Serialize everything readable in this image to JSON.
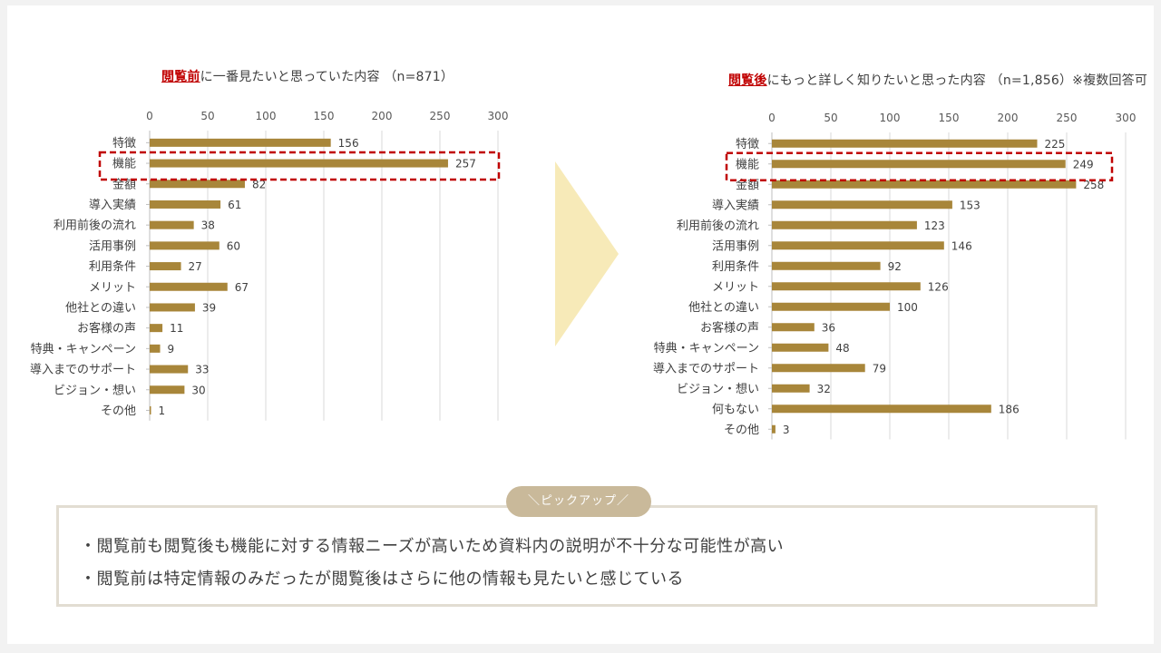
{
  "charts": {
    "left": {
      "title_accent": "閲覧前",
      "title_rest": "に一番見たいと思っていた内容 （n=871）"
    },
    "right": {
      "title_accent": "閲覧後",
      "title_rest": "にもっと詳しく知りたいと思った内容 （n=1,856）※複数回答可"
    }
  },
  "pickup": {
    "badge": "＼ピックアップ／",
    "bullets": [
      "・閲覧前も閲覧後も機能に対する情報ニーズが高いため資料内の説明が不十分な可能性が高い",
      "・閲覧前は特定情報のみだったが閲覧後はさらに他の情報も見たいと感じている"
    ]
  },
  "colors": {
    "bar": "#a8863a",
    "highlight": "#c00000",
    "grid": "#d9d9d9",
    "arrow": "#f7eab8"
  },
  "chart_data": [
    {
      "type": "bar",
      "orientation": "horizontal",
      "title": "閲覧前に一番見たいと思っていた内容 （n=871）",
      "categories": [
        "特徴",
        "機能",
        "金額",
        "導入実績",
        "利用前後の流れ",
        "活用事例",
        "利用条件",
        "メリット",
        "他社との違い",
        "お客様の声",
        "特典・キャンペーン",
        "導入までのサポート",
        "ビジョン・想い",
        "その他"
      ],
      "values": [
        156,
        257,
        82,
        61,
        38,
        60,
        27,
        67,
        39,
        11,
        9,
        33,
        30,
        1
      ],
      "xlim": [
        0,
        300
      ],
      "ticks": [
        0,
        50,
        100,
        150,
        200,
        250,
        300
      ],
      "highlighted": [
        "機能"
      ]
    },
    {
      "type": "bar",
      "orientation": "horizontal",
      "title": "閲覧後にもっと詳しく知りたいと思った内容 （n=1,856）※複数回答可",
      "categories": [
        "特徴",
        "機能",
        "金額",
        "導入実績",
        "利用前後の流れ",
        "活用事例",
        "利用条件",
        "メリット",
        "他社との違い",
        "お客様の声",
        "特典・キャンペーン",
        "導入までのサポート",
        "ビジョン・想い",
        "何もない",
        "その他"
      ],
      "values": [
        225,
        249,
        258,
        153,
        123,
        146,
        92,
        126,
        100,
        36,
        48,
        79,
        32,
        186,
        3
      ],
      "xlim": [
        0,
        300
      ],
      "ticks": [
        0,
        50,
        100,
        150,
        200,
        250,
        300
      ],
      "highlighted": [
        "機能"
      ]
    }
  ]
}
